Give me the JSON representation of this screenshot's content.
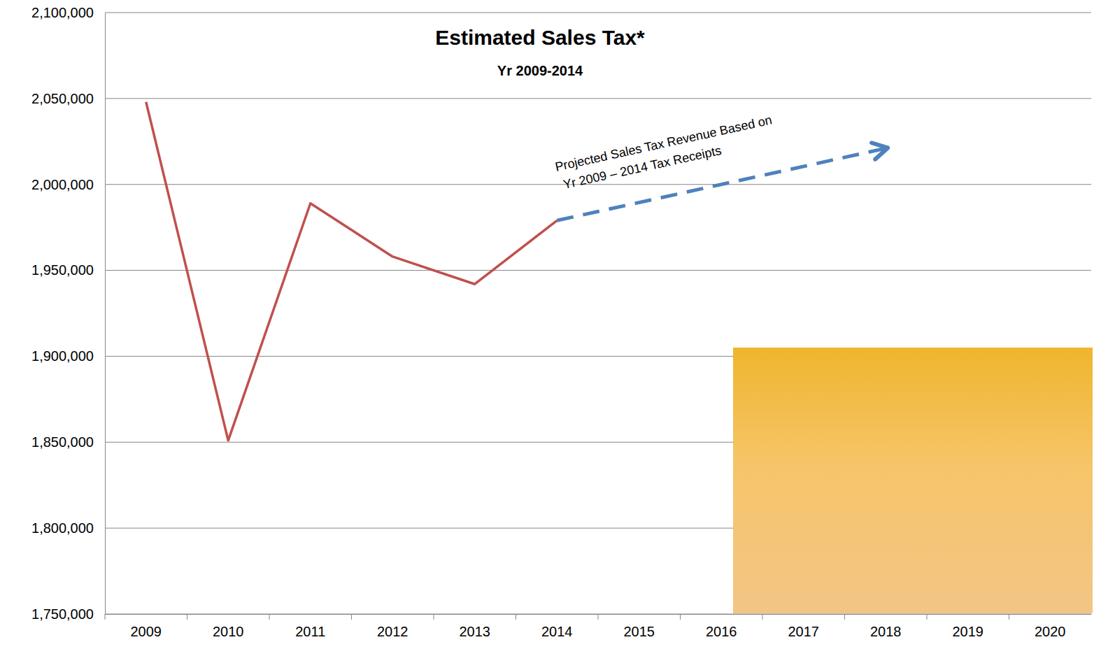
{
  "chart_data": {
    "type": "line",
    "title": "Estimated Sales Tax*",
    "subtitle": "Yr 2009-2014",
    "annotation": [
      "Projected Sales Tax Revenue Based on",
      "Yr 2009 – 2014 Tax Receipts"
    ],
    "categories": [
      "2009",
      "2010",
      "2011",
      "2012",
      "2013",
      "2014",
      "2015",
      "2016",
      "2017",
      "2018",
      "2019",
      "2020"
    ],
    "series": [
      {
        "color": "#c0504d",
        "line_style": "solid",
        "values": [
          2048000,
          1851000,
          1989000,
          1958000,
          1942000,
          1979000,
          null,
          null,
          null,
          null,
          null,
          null
        ]
      },
      {
        "color": "#4f81bd",
        "line_style": "dashed",
        "marker": "arrow",
        "values": [
          null,
          null,
          null,
          null,
          null,
          1979000,
          null,
          null,
          null,
          2021000,
          null,
          null
        ]
      }
    ],
    "ylim": [
      1750000,
      2100000
    ],
    "yticks": [
      {
        "value": 1750000,
        "label": "1,750,000"
      },
      {
        "value": 1800000,
        "label": "1,800,000"
      },
      {
        "value": 1850000,
        "label": "1,850,000"
      },
      {
        "value": 1900000,
        "label": "1,900,000"
      },
      {
        "value": 1950000,
        "label": "1,950,000"
      },
      {
        "value": 2000000,
        "label": "2,000,000"
      },
      {
        "value": 2050000,
        "label": "2,050,000"
      },
      {
        "value": 2100000,
        "label": "2,100,000"
      }
    ],
    "grid": true
  }
}
